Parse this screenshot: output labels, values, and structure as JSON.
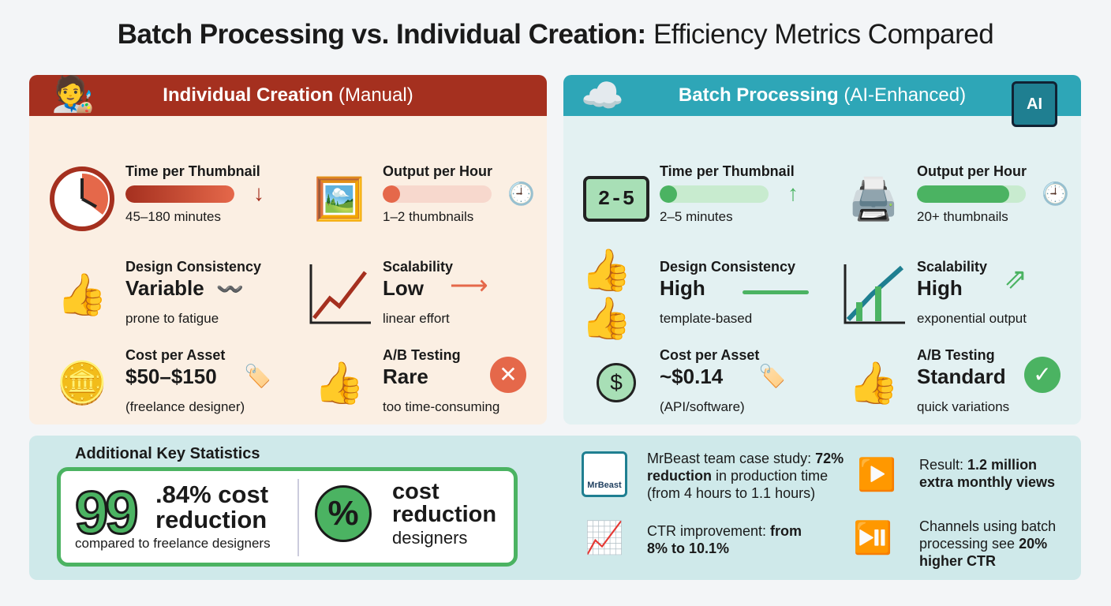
{
  "title": {
    "bold": "Batch Processing vs. Individual Creation:",
    "rest": " Efficiency Metrics Compared"
  },
  "left": {
    "header_bold": "Individual Creation",
    "header_rest": " (Manual)",
    "time": {
      "label": "Time per Thumbnail",
      "value": "45–180 minutes",
      "bar_fill": 1.0
    },
    "output": {
      "label": "Output per Hour",
      "value": "1–2 thumbnails",
      "bar_fill": 0.1
    },
    "consistency": {
      "label": "Design Consistency",
      "value": "Variable",
      "note": "prone to fatigue"
    },
    "scalability": {
      "label": "Scalability",
      "value": "Low",
      "note": "linear effort"
    },
    "cost": {
      "label": "Cost per Asset",
      "value": "$50–$150",
      "note": "(freelance designer)"
    },
    "ab": {
      "label": "A/B Testing",
      "value": "Rare",
      "note": "too time-consuming"
    }
  },
  "right": {
    "header_bold": "Batch Processing",
    "header_rest": " (AI-Enhanced)",
    "chip_label": "AI",
    "clock_display": "2-5",
    "time": {
      "label": "Time per Thumbnail",
      "value": "2–5 minutes",
      "bar_fill": 0.1
    },
    "output": {
      "label": "Output per Hour",
      "value": "20+ thumbnails",
      "bar_fill": 0.85
    },
    "consistency": {
      "label": "Design Consistency",
      "value": "High",
      "note": "template-based"
    },
    "scalability": {
      "label": "Scalability",
      "value": "High",
      "note": "exponential output"
    },
    "cost": {
      "label": "Cost per Asset",
      "value": "~$0.14",
      "note": "(API/software)"
    },
    "ab": {
      "label": "A/B Testing",
      "value": "Standard",
      "note": "quick variations"
    }
  },
  "bottom": {
    "heading": "Additional Key Statistics",
    "big_number": "99",
    "stat1": ".84% cost reduction",
    "stat1_caption": "compared to freelance designers",
    "pct_symbol": "%",
    "stat2": "cost reduction",
    "stat2_caption": "designers",
    "mrbeast_logo": "MrBeast",
    "facts": [
      {
        "pre": "MrBeast team case study: ",
        "bold": "72% reduction",
        "post": " in production time (from 4 hours to 1.1 hours)"
      },
      {
        "pre": "Result: ",
        "bold": "1.2 million extra monthly views",
        "post": ""
      },
      {
        "pre": "CTR improvement: ",
        "bold": "from 8% to 10.1%",
        "post": ""
      },
      {
        "pre": "Channels using batch processing see ",
        "bold": "20% higher CTR",
        "post": ""
      }
    ]
  },
  "colors": {
    "manual": "#a5301f",
    "manual_accent": "#e5684a",
    "batch": "#2ea6b7",
    "green": "#4bb362"
  }
}
